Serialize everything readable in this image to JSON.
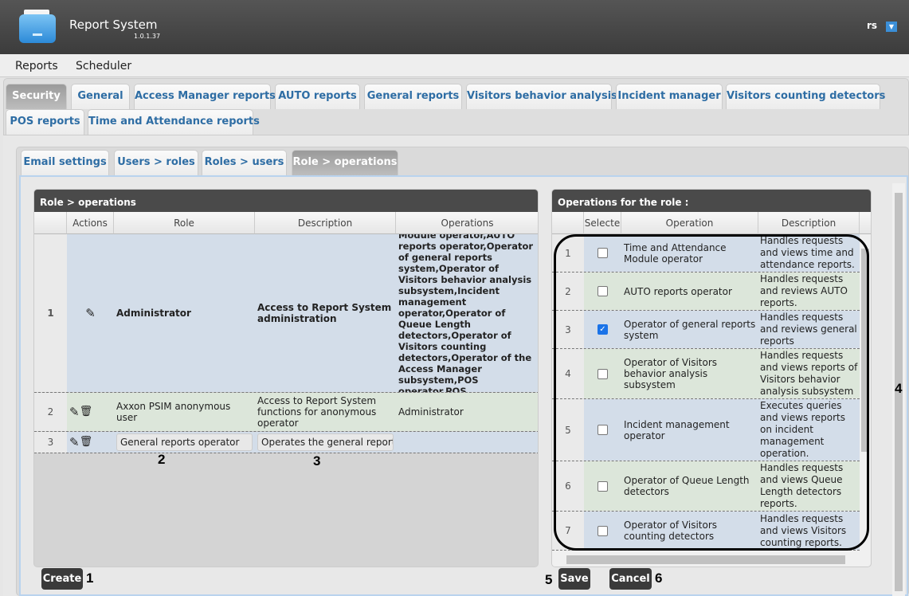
{
  "app": {
    "title": "Report System",
    "version": "1.0.1.37",
    "user": "rs"
  },
  "menu": [
    "Reports",
    "Scheduler"
  ],
  "tabs_row1": [
    "Security",
    "General",
    "Access Manager reports",
    "AUTO reports",
    "General reports",
    "Visitors behavior analysis",
    "Incident manager",
    "Visitors counting detectors"
  ],
  "tabs_row2": [
    "POS reports",
    "Time and Attendance reports"
  ],
  "subtabs": [
    "Email settings",
    "Users > roles",
    "Roles > users",
    "Role > operations"
  ],
  "left": {
    "title": "Role > operations",
    "columns": [
      "Actions",
      "Role",
      "Description",
      "Operations"
    ],
    "rows": [
      {
        "n": "1",
        "role": "Administrator",
        "desc": "Access to Report System administration",
        "ops": "Time and Attendance Module operator,AUTO reports operator,Operator of general reports system,Operator of Visitors behavior analysis subsystem,Incident management operator,Operator of Queue Length detectors,Operator of Visitors counting detectors,Operator of the Access Manager subsystem,POS operator,POS expert,Administrator"
      },
      {
        "n": "2",
        "role": "Axxon PSIM anonymous user",
        "desc": "Access to Report System functions for anonymous operator",
        "ops": "Administrator"
      },
      {
        "n": "3",
        "role": "General reports operator",
        "desc": "Operates the general report",
        "ops": ""
      }
    ],
    "create": "Create"
  },
  "right": {
    "title": "Operations for the role :",
    "columns": [
      "Selecte",
      "Operation",
      "Description"
    ],
    "rows": [
      {
        "n": "1",
        "checked": false,
        "op": "Time and Attendance Module operator",
        "desc": "Handles requests and views time and attendance reports."
      },
      {
        "n": "2",
        "checked": false,
        "op": "AUTO reports operator",
        "desc": "Handles requests and reviews AUTO reports."
      },
      {
        "n": "3",
        "checked": true,
        "op": "Operator of general reports system",
        "desc": "Handles requests and reviews general reports"
      },
      {
        "n": "4",
        "checked": false,
        "op": "Operator of Visitors behavior analysis subsystem",
        "desc": "Handles requests and views reports of Visitors behavior analysis subsystem"
      },
      {
        "n": "5",
        "checked": false,
        "op": "Incident management operator",
        "desc": "Executes queries and views reports on incident management operation."
      },
      {
        "n": "6",
        "checked": false,
        "op": "Operator of Queue Length detectors",
        "desc": "Handles requests and views Queue Length detectors reports."
      },
      {
        "n": "7",
        "checked": false,
        "op": "Operator of Visitors counting detectors",
        "desc": "Handles requests and views Visitors counting reports."
      }
    ],
    "save": "Save",
    "cancel": "Cancel"
  },
  "callouts": [
    "1",
    "2",
    "3",
    "4",
    "5",
    "6"
  ]
}
